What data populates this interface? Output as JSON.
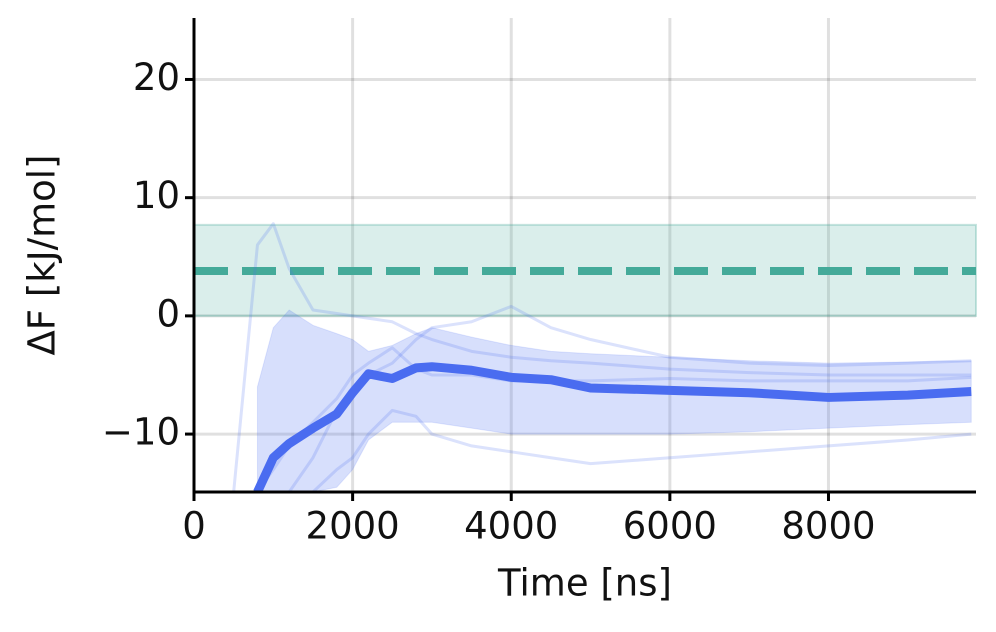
{
  "chart_data": {
    "type": "line",
    "xlabel": "Time [ns]",
    "ylabel": "ΔF [kJ/mol]",
    "x": [
      200,
      500,
      800,
      1000,
      1200,
      1500,
      1800,
      2000,
      2200,
      2500,
      2800,
      3000,
      3500,
      4000,
      4500,
      5000,
      6000,
      7000,
      8000,
      9000,
      9800
    ],
    "series": [
      {
        "color": "#4a6cf0",
        "width": 9,
        "opacity": 1,
        "values": [
          null,
          null,
          -14.9,
          -12,
          -10.8,
          -9.5,
          -8.3,
          -6.5,
          -4.9,
          -5.3,
          -4.4,
          -4.3,
          -4.6,
          -5.2,
          -5.4,
          -6.1,
          -6.3,
          -6.5,
          -6.9,
          -6.7,
          -6.4
        ]
      },
      {
        "color": "#4a6cf0",
        "width": 3,
        "opacity": 0.2,
        "values": [
          null,
          -14.9,
          6,
          7.8,
          4,
          0.5,
          0.2,
          0,
          -0.2,
          -0.5,
          -1.5,
          -2,
          -3,
          -3.5,
          -3.8,
          -4,
          -4.5,
          -4.8,
          -5,
          -5,
          -5
        ]
      },
      {
        "color": "#4a6cf0",
        "width": 3,
        "opacity": 0.2,
        "values": [
          null,
          null,
          null,
          null,
          -14.9,
          -12,
          -8,
          -6,
          -5,
          -4,
          -2,
          -1,
          -0.5,
          0.8,
          -1,
          -2,
          -3.5,
          -4,
          -4.2,
          -4,
          -3.8
        ]
      },
      {
        "color": "#4a6cf0",
        "width": 3,
        "opacity": 0.2,
        "values": [
          null,
          null,
          null,
          null,
          null,
          -14.9,
          -13,
          -12,
          -10,
          -8,
          -8.5,
          -10,
          -11,
          -11.5,
          -12,
          -12.5,
          -12,
          -11.5,
          -11,
          -10.5,
          -10
        ]
      },
      {
        "color": "#4a6cf0",
        "width": 3,
        "opacity": 0.2,
        "values": [
          null,
          null,
          -14.9,
          -13,
          -11,
          -9,
          -7,
          -5,
          -4,
          -2.7,
          -4.5,
          -5,
          -5,
          -5.5,
          -5.5,
          -5.5,
          -5.3,
          -5.5,
          -5.5,
          -5.5,
          -5.2
        ]
      }
    ],
    "band": {
      "color": "#4a6cf0",
      "lower": [
        null,
        null,
        -14.9,
        -14.9,
        -14.9,
        -14.9,
        -14.5,
        -13,
        -10.5,
        -9,
        -9,
        -9,
        -9.5,
        -10,
        -10,
        -10,
        -10,
        -9.8,
        -9.5,
        -9.2,
        -9
      ],
      "upper": [
        null,
        null,
        -6,
        -1,
        0.5,
        -0.8,
        -1.5,
        -2,
        -3,
        -2.5,
        -1.5,
        -1,
        -1.8,
        -2.5,
        -3,
        -3.2,
        -3.5,
        -3.8,
        -4,
        -3.9,
        -3.8
      ]
    },
    "reference": {
      "color": "#44aa99",
      "value": 3.8,
      "lower": 0,
      "upper": 7.7
    },
    "xlim": [
      0,
      9860
    ],
    "ylim": [
      -14.9,
      25.2
    ],
    "xticks": [
      0,
      2000,
      4000,
      6000,
      8000
    ],
    "yticks": [
      {
        "value": -10,
        "label": "−10"
      },
      0,
      10,
      20
    ],
    "grid": true
  }
}
